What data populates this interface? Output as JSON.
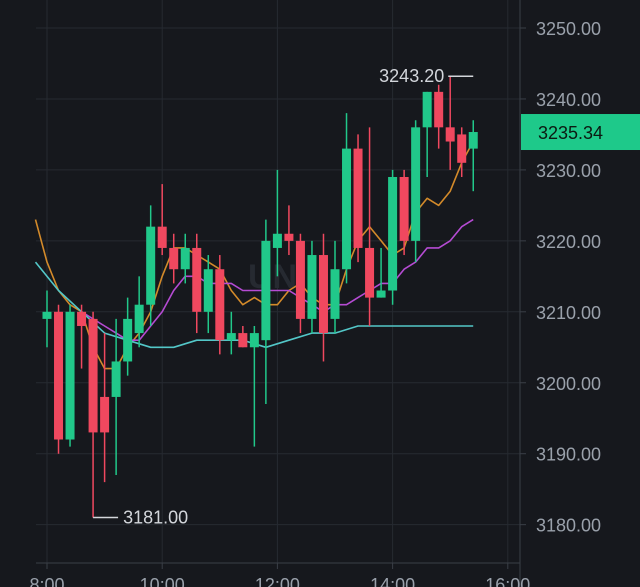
{
  "chart_data": {
    "type": "candlestick",
    "watermark": "UNI",
    "y_ticks": [
      "3250.00",
      "3240.00",
      "3230.00",
      "3220.00",
      "3210.00",
      "3200.00",
      "3190.00",
      "3180.00"
    ],
    "y_tick_values": [
      3250,
      3240,
      3230,
      3220,
      3210,
      3200,
      3190,
      3180
    ],
    "x_ticks": [
      "8:00",
      "10:00",
      "12:00",
      "14:00",
      "16:00"
    ],
    "x_tick_values": [
      8,
      10,
      12,
      14,
      16
    ],
    "ylim": [
      3176,
      3254
    ],
    "xlim": [
      7.8,
      16.4
    ],
    "grid": true,
    "last_price": {
      "label": "3235.34",
      "value": 3235.34,
      "color": "#1ec98a"
    },
    "annotations": [
      {
        "label": "3243.20",
        "x": 15.4,
        "value": 3243.2,
        "kind": "high"
      },
      {
        "label": "3181.00",
        "x": 8.8,
        "value": 3181.0,
        "kind": "low"
      }
    ],
    "colors": {
      "up": "#21c88a",
      "down": "#f0485f",
      "ma_fast": "#d38a2a",
      "ma_mid": "#b54bd3",
      "ma_slow": "#53c7c8"
    },
    "candles": [
      {
        "x": 8.0,
        "o": 3209,
        "h": 3213,
        "l": 3205,
        "c": 3210
      },
      {
        "x": 8.2,
        "o": 3210,
        "h": 3211,
        "l": 3190,
        "c": 3192
      },
      {
        "x": 8.4,
        "o": 3192,
        "h": 3211,
        "l": 3191,
        "c": 3210
      },
      {
        "x": 8.6,
        "o": 3210,
        "h": 3211,
        "l": 3202,
        "c": 3208
      },
      {
        "x": 8.8,
        "o": 3209,
        "h": 3210,
        "l": 3181,
        "c": 3193
      },
      {
        "x": 9.0,
        "o": 3198,
        "h": 3207,
        "l": 3186,
        "c": 3193
      },
      {
        "x": 9.2,
        "o": 3198,
        "h": 3209,
        "l": 3187,
        "c": 3203
      },
      {
        "x": 9.4,
        "o": 3203,
        "h": 3212,
        "l": 3201,
        "c": 3209
      },
      {
        "x": 9.6,
        "o": 3207,
        "h": 3215,
        "l": 3205,
        "c": 3211
      },
      {
        "x": 9.8,
        "o": 3211,
        "h": 3225,
        "l": 3208,
        "c": 3222
      },
      {
        "x": 10.0,
        "o": 3222,
        "h": 3228,
        "l": 3218,
        "c": 3219
      },
      {
        "x": 10.2,
        "o": 3219,
        "h": 3221,
        "l": 3214,
        "c": 3216
      },
      {
        "x": 10.4,
        "o": 3216,
        "h": 3221,
        "l": 3214,
        "c": 3219
      },
      {
        "x": 10.6,
        "o": 3219,
        "h": 3221,
        "l": 3207,
        "c": 3210
      },
      {
        "x": 10.8,
        "o": 3210,
        "h": 3218,
        "l": 3207,
        "c": 3216
      },
      {
        "x": 11.0,
        "o": 3216,
        "h": 3218,
        "l": 3204,
        "c": 3206
      },
      {
        "x": 11.2,
        "o": 3206,
        "h": 3210,
        "l": 3204,
        "c": 3207
      },
      {
        "x": 11.4,
        "o": 3207,
        "h": 3208,
        "l": 3205,
        "c": 3205
      },
      {
        "x": 11.6,
        "o": 3205,
        "h": 3208,
        "l": 3191,
        "c": 3207
      },
      {
        "x": 11.8,
        "o": 3206,
        "h": 3223,
        "l": 3197,
        "c": 3220
      },
      {
        "x": 12.0,
        "o": 3219,
        "h": 3230,
        "l": 3215,
        "c": 3221
      },
      {
        "x": 12.2,
        "o": 3221,
        "h": 3225,
        "l": 3218,
        "c": 3220
      },
      {
        "x": 12.4,
        "o": 3220,
        "h": 3221,
        "l": 3207,
        "c": 3209
      },
      {
        "x": 12.6,
        "o": 3209,
        "h": 3220,
        "l": 3207,
        "c": 3218
      },
      {
        "x": 12.8,
        "o": 3218,
        "h": 3221,
        "l": 3203,
        "c": 3207
      },
      {
        "x": 13.0,
        "o": 3209,
        "h": 3220,
        "l": 3207,
        "c": 3216
      },
      {
        "x": 13.2,
        "o": 3216,
        "h": 3238,
        "l": 3214,
        "c": 3233
      },
      {
        "x": 13.4,
        "o": 3233,
        "h": 3235,
        "l": 3217,
        "c": 3219
      },
      {
        "x": 13.6,
        "o": 3219,
        "h": 3236,
        "l": 3208,
        "c": 3212
      },
      {
        "x": 13.8,
        "o": 3212,
        "h": 3219,
        "l": 3212,
        "c": 3213
      },
      {
        "x": 14.0,
        "o": 3213,
        "h": 3230,
        "l": 3211,
        "c": 3229
      },
      {
        "x": 14.2,
        "o": 3229,
        "h": 3230,
        "l": 3218,
        "c": 3220
      },
      {
        "x": 14.4,
        "o": 3220,
        "h": 3237,
        "l": 3217,
        "c": 3236
      },
      {
        "x": 14.6,
        "o": 3236,
        "h": 3241,
        "l": 3229,
        "c": 3241
      },
      {
        "x": 14.8,
        "o": 3241,
        "h": 3242,
        "l": 3233,
        "c": 3236
      },
      {
        "x": 15.0,
        "o": 3236,
        "h": 3243.2,
        "l": 3230,
        "c": 3234
      },
      {
        "x": 15.2,
        "o": 3235,
        "h": 3236,
        "l": 3229,
        "c": 3231
      },
      {
        "x": 15.4,
        "o": 3233,
        "h": 3237,
        "l": 3227,
        "c": 3235.34
      }
    ],
    "series": [
      {
        "key": "ma_fast",
        "x": [
          7.8,
          8.0,
          8.2,
          8.4,
          8.6,
          8.8,
          9.0,
          9.2,
          9.4,
          9.6,
          9.8,
          10.0,
          10.2,
          10.4,
          10.6,
          10.8,
          11.0,
          11.2,
          11.4,
          11.6,
          11.8,
          12.0,
          12.2,
          12.4,
          12.6,
          12.8,
          13.0,
          13.2,
          13.4,
          13.6,
          13.8,
          14.0,
          14.2,
          14.4,
          14.6,
          14.8,
          15.0,
          15.2,
          15.4
        ],
        "values": [
          3223,
          3217,
          3213,
          3211,
          3210,
          3205,
          3202,
          3202,
          3205,
          3207,
          3210,
          3215,
          3219,
          3219,
          3218,
          3217,
          3216,
          3213,
          3211,
          3212,
          3211,
          3211,
          3213,
          3214,
          3212,
          3211,
          3211,
          3216,
          3220,
          3222,
          3220,
          3218,
          3219,
          3224,
          3226,
          3225,
          3227,
          3231,
          3234
        ]
      },
      {
        "key": "ma_mid",
        "x": [
          8.6,
          8.8,
          9.0,
          9.2,
          9.4,
          9.6,
          9.8,
          10.0,
          10.2,
          10.4,
          10.6,
          10.8,
          11.0,
          11.2,
          11.4,
          11.6,
          11.8,
          12.0,
          12.2,
          12.4,
          12.6,
          12.8,
          13.0,
          13.2,
          13.4,
          13.6,
          13.8,
          14.0,
          14.2,
          14.4,
          14.6,
          14.8,
          15.0,
          15.2,
          15.4
        ],
        "values": [
          3210,
          3209,
          3208,
          3207,
          3206,
          3206,
          3208,
          3210,
          3213,
          3215,
          3215,
          3214,
          3214,
          3214,
          3213,
          3213,
          3213,
          3213,
          3213,
          3212,
          3211,
          3210,
          3211,
          3211,
          3212,
          3213,
          3214,
          3214,
          3216,
          3217,
          3219,
          3219,
          3220,
          3222,
          3223
        ]
      },
      {
        "key": "ma_slow",
        "x": [
          7.8,
          8.2,
          8.6,
          9.0,
          9.4,
          9.8,
          10.2,
          10.6,
          11.0,
          11.4,
          11.8,
          12.2,
          12.6,
          13.0,
          13.4,
          13.8,
          14.2,
          14.6,
          15.0,
          15.4
        ],
        "values": [
          3217,
          3213,
          3210,
          3207,
          3206,
          3205,
          3205,
          3206,
          3206,
          3206,
          3205,
          3206,
          3207,
          3207,
          3208,
          3208,
          3208,
          3208,
          3208,
          3208
        ]
      }
    ]
  }
}
